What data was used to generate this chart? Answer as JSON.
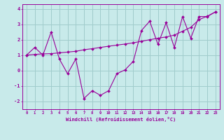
{
  "xlabel": "Windchill (Refroidissement éolien,°C)",
  "x_values": [
    0,
    1,
    2,
    3,
    4,
    5,
    6,
    7,
    8,
    9,
    10,
    11,
    12,
    13,
    14,
    15,
    16,
    17,
    18,
    19,
    20,
    21,
    22,
    23
  ],
  "line1_y": [
    1.0,
    1.5,
    1.0,
    2.5,
    0.75,
    -0.2,
    0.75,
    -1.8,
    -1.3,
    -1.6,
    -1.3,
    -0.2,
    0.05,
    0.6,
    2.6,
    3.2,
    1.7,
    3.1,
    1.5,
    3.5,
    2.1,
    3.5,
    3.5,
    3.8
  ],
  "line2_y": [
    1.0,
    1.05,
    1.08,
    1.1,
    1.15,
    1.2,
    1.25,
    1.35,
    1.42,
    1.5,
    1.58,
    1.65,
    1.72,
    1.8,
    1.9,
    2.0,
    2.1,
    2.18,
    2.3,
    2.55,
    2.8,
    3.3,
    3.52,
    3.8
  ],
  "line_color": "#990099",
  "bg_color": "#c8eaea",
  "grid_color": "#a0cccc",
  "ylim": [
    -2.5,
    4.3
  ],
  "xlim": [
    -0.5,
    23.5
  ],
  "yticks": [
    -2,
    -1,
    0,
    1,
    2,
    3,
    4
  ],
  "xticks": [
    0,
    1,
    2,
    3,
    4,
    5,
    6,
    7,
    8,
    9,
    10,
    11,
    12,
    13,
    14,
    15,
    16,
    17,
    18,
    19,
    20,
    21,
    22,
    23
  ]
}
